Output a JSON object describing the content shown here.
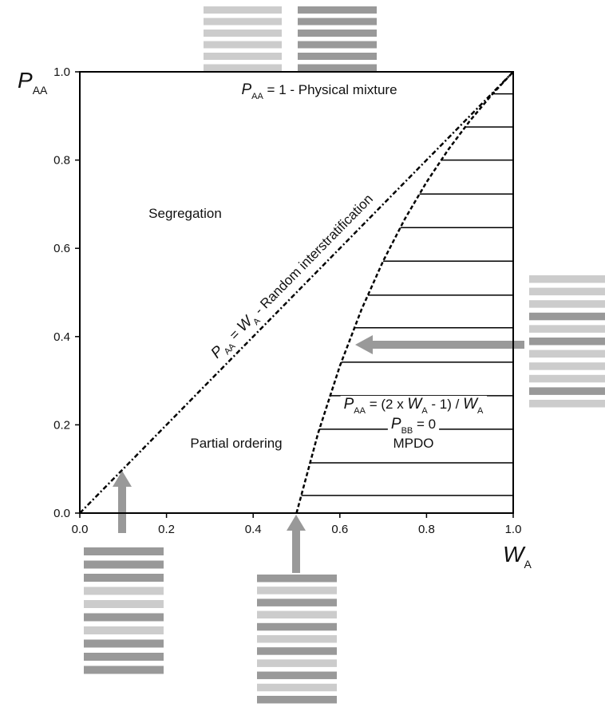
{
  "chart_data": {
    "type": "line",
    "x_label": [
      "W",
      "A"
    ],
    "y_label": [
      "P",
      "AA"
    ],
    "xlim": [
      0,
      1
    ],
    "ylim": [
      0,
      1
    ],
    "xticks": [
      {
        "value": 0,
        "label": "0.0"
      },
      0.2,
      0.4,
      0.6,
      0.8,
      {
        "value": 1,
        "label": "1.0"
      }
    ],
    "yticks": [
      {
        "value": 0,
        "label": "0.0"
      },
      0.2,
      0.4,
      0.6,
      0.8,
      {
        "value": 1,
        "label": "1.0"
      }
    ],
    "series": [
      {
        "style": "dashdot",
        "color": "#000000",
        "x": [
          0,
          1
        ],
        "values": [
          0,
          1
        ]
      },
      {
        "style": "dashed",
        "color": "#000000",
        "x": [
          0.5,
          0.55,
          0.6,
          0.65,
          0.7,
          0.75,
          0.8,
          0.85,
          0.9,
          0.95,
          1
        ],
        "values": [
          0,
          0.1818,
          0.3333,
          0.4615,
          0.5714,
          0.6667,
          0.75,
          0.8235,
          0.8889,
          0.9474,
          1
        ]
      }
    ],
    "hatch": [
      0.04,
      0.114,
      0.19,
      0.266,
      0.342,
      0.42,
      0.494,
      0.571,
      0.647,
      0.723,
      0.8,
      0.875,
      0.95
    ],
    "annotations": [
      {
        "parts": [
          "P",
          "AA",
          " = 1 - Physical mixture"
        ]
      },
      {
        "parts": [
          "Segregation"
        ]
      },
      {
        "parts": [
          "P",
          "AA",
          " = ",
          "W",
          "A",
          " - Random interstratification"
        ]
      },
      {
        "parts": [
          "P",
          "AA",
          " = (2 x ",
          "W",
          "A",
          " - 1) / ",
          "W",
          "A"
        ]
      },
      {
        "parts": [
          "P",
          "BB",
          " = 0"
        ]
      },
      {
        "parts": [
          "MPDO"
        ]
      },
      {
        "parts": [
          "Partial ordering"
        ]
      }
    ]
  }
}
